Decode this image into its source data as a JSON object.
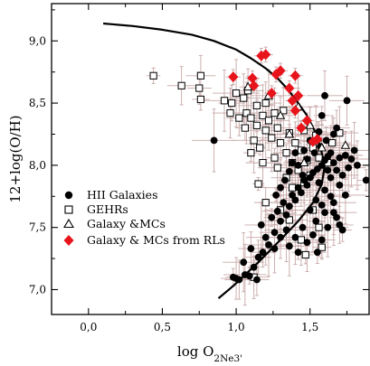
{
  "chart_data": {
    "type": "scatter",
    "xlabel": "log O2Ne3'",
    "ylabel": "12+log(O/H)",
    "xlim": [
      -0.25,
      1.9
    ],
    "ylim": [
      6.8,
      9.3
    ],
    "xticks": [
      "0,0",
      "0,5",
      "1,0",
      "1,5"
    ],
    "xtick_values": [
      0.0,
      0.5,
      1.0,
      1.5
    ],
    "yticks": [
      "7,0",
      "7,5",
      "8,0",
      "8,5",
      "9,0"
    ],
    "ytick_values": [
      7.0,
      7.5,
      8.0,
      8.5,
      9.0
    ],
    "legend_position": "left",
    "colors": {
      "axes": "#000000",
      "error_bars": "#c8a8a8",
      "highlight": "#e8141c",
      "markers": "#000000"
    },
    "series": [
      {
        "name": "HII Galaxies",
        "marker": "filled-circle",
        "points": [
          [
            1.0,
            7.09
          ],
          [
            1.02,
            7.08
          ],
          [
            1.06,
            7.12
          ],
          [
            1.09,
            7.11
          ],
          [
            1.12,
            7.18
          ],
          [
            1.05,
            7.22
          ],
          [
            1.15,
            7.26
          ],
          [
            1.18,
            7.3
          ],
          [
            1.1,
            7.33
          ],
          [
            1.22,
            7.36
          ],
          [
            1.2,
            7.42
          ],
          [
            1.26,
            7.46
          ],
          [
            1.17,
            7.52
          ],
          [
            1.3,
            7.55
          ],
          [
            1.24,
            7.58
          ],
          [
            1.34,
            7.6
          ],
          [
            1.28,
            7.63
          ],
          [
            1.36,
            7.67
          ],
          [
            1.32,
            7.7
          ],
          [
            1.4,
            7.72
          ],
          [
            1.38,
            7.76
          ],
          [
            1.44,
            7.78
          ],
          [
            1.42,
            7.82
          ],
          [
            1.48,
            7.84
          ],
          [
            1.46,
            7.88
          ],
          [
            1.5,
            7.9
          ],
          [
            1.52,
            7.94
          ],
          [
            1.55,
            7.97
          ],
          [
            1.58,
            8.0
          ],
          [
            1.6,
            8.04
          ],
          [
            1.62,
            8.07
          ],
          [
            1.64,
            8.1
          ],
          [
            1.66,
            8.02
          ],
          [
            1.68,
            7.96
          ],
          [
            1.7,
            8.06
          ],
          [
            1.72,
            7.92
          ],
          [
            1.74,
            8.08
          ],
          [
            1.76,
            7.98
          ],
          [
            1.78,
            8.05
          ],
          [
            1.8,
            8.12
          ],
          [
            1.82,
            8.0
          ],
          [
            1.88,
            7.88
          ],
          [
            1.56,
            7.86
          ],
          [
            1.6,
            7.8
          ],
          [
            1.64,
            7.75
          ],
          [
            1.66,
            7.7
          ],
          [
            1.6,
            7.62
          ],
          [
            1.68,
            7.58
          ],
          [
            1.7,
            7.52
          ],
          [
            1.72,
            7.48
          ],
          [
            1.62,
            7.5
          ],
          [
            1.54,
            7.55
          ],
          [
            1.5,
            7.64
          ],
          [
            1.45,
            7.5
          ],
          [
            1.4,
            7.42
          ],
          [
            1.36,
            7.35
          ],
          [
            1.42,
            7.3
          ],
          [
            1.48,
            7.38
          ],
          [
            1.52,
            7.44
          ],
          [
            1.58,
            7.4
          ],
          [
            1.55,
            7.3
          ],
          [
            1.34,
            7.48
          ],
          [
            1.3,
            7.42
          ],
          [
            1.26,
            7.33
          ],
          [
            1.45,
            7.92
          ],
          [
            1.42,
            8.0
          ],
          [
            1.48,
            8.05
          ],
          [
            1.53,
            8.1
          ],
          [
            1.57,
            8.15
          ],
          [
            1.61,
            8.2
          ],
          [
            1.66,
            8.25
          ],
          [
            1.5,
            8.2
          ],
          [
            1.46,
            8.12
          ],
          [
            1.4,
            8.1
          ],
          [
            1.38,
            8.02
          ],
          [
            1.36,
            7.95
          ],
          [
            1.33,
            7.88
          ],
          [
            1.3,
            7.82
          ],
          [
            1.27,
            7.76
          ],
          [
            1.56,
            8.27
          ],
          [
            1.58,
            8.4
          ],
          [
            1.6,
            8.56
          ],
          [
            1.75,
            8.52
          ],
          [
            1.68,
            8.3
          ],
          [
            1.64,
            7.9
          ],
          [
            1.7,
            7.84
          ],
          [
            1.74,
            7.76
          ],
          [
            1.54,
            7.72
          ],
          [
            1.58,
            7.68
          ],
          [
            1.62,
            7.96
          ],
          [
            1.66,
            7.62
          ],
          [
            0.85,
            8.2
          ],
          [
            1.14,
            7.08
          ],
          [
            0.98,
            7.1
          ]
        ]
      },
      {
        "name": "GEHRs",
        "marker": "open-square",
        "points": [
          [
            0.44,
            8.72
          ],
          [
            0.63,
            8.64
          ],
          [
            0.76,
            8.72
          ],
          [
            0.75,
            8.62
          ],
          [
            0.76,
            8.53
          ],
          [
            0.92,
            8.52
          ],
          [
            0.97,
            8.5
          ],
          [
            0.96,
            8.42
          ],
          [
            1.0,
            8.58
          ],
          [
            1.05,
            8.54
          ],
          [
            1.07,
            8.42
          ],
          [
            1.1,
            8.38
          ],
          [
            1.06,
            8.3
          ],
          [
            1.14,
            8.32
          ],
          [
            1.12,
            8.2
          ],
          [
            1.18,
            8.4
          ],
          [
            1.2,
            8.28
          ],
          [
            1.16,
            8.14
          ],
          [
            1.22,
            8.36
          ],
          [
            1.24,
            8.22
          ],
          [
            1.26,
            8.06
          ],
          [
            1.28,
            8.3
          ],
          [
            1.3,
            8.18
          ],
          [
            1.32,
            8.44
          ],
          [
            1.34,
            8.1
          ],
          [
            1.36,
            8.26
          ],
          [
            1.38,
            8.02
          ],
          [
            1.4,
            8.18
          ],
          [
            1.42,
            7.96
          ],
          [
            1.44,
            8.12
          ],
          [
            1.46,
            8.28
          ],
          [
            1.48,
            8.04
          ],
          [
            1.5,
            7.92
          ],
          [
            1.52,
            8.14
          ],
          [
            1.54,
            8.24
          ],
          [
            1.56,
            8.06
          ],
          [
            1.62,
            8.02
          ],
          [
            1.65,
            8.18
          ],
          [
            1.7,
            8.26
          ],
          [
            1.46,
            7.86
          ],
          [
            1.38,
            7.82
          ],
          [
            1.34,
            7.9
          ],
          [
            1.2,
            7.7
          ],
          [
            1.15,
            7.85
          ],
          [
            1.28,
            7.98
          ],
          [
            1.44,
            7.4
          ],
          [
            1.47,
            7.28
          ],
          [
            1.58,
            7.34
          ],
          [
            1.12,
            7.1
          ],
          [
            1.08,
            8.6
          ],
          [
            1.14,
            8.48
          ],
          [
            1.2,
            8.5
          ],
          [
            1.26,
            8.42
          ],
          [
            1.18,
            8.02
          ],
          [
            1.02,
            8.38
          ],
          [
            1.1,
            8.1
          ],
          [
            1.3,
            7.64
          ],
          [
            1.36,
            7.56
          ],
          [
            1.52,
            7.64
          ],
          [
            1.56,
            7.5
          ]
        ]
      },
      {
        "name": "Galaxy &MCs",
        "marker": "open-triangle",
        "points": [
          [
            1.08,
            8.63
          ],
          [
            1.22,
            8.56
          ],
          [
            1.3,
            8.4
          ],
          [
            1.36,
            8.25
          ],
          [
            1.42,
            8.47
          ],
          [
            1.5,
            8.32
          ],
          [
            1.55,
            8.22
          ],
          [
            1.58,
            8.14
          ],
          [
            1.74,
            8.16
          ],
          [
            1.46,
            8.02
          ]
        ]
      },
      {
        "name": "Galaxy & MCs from RLs",
        "marker": "filled-diamond",
        "points": [
          [
            1.17,
            8.88
          ],
          [
            1.2,
            8.89
          ],
          [
            1.27,
            8.73
          ],
          [
            1.3,
            8.76
          ],
          [
            1.4,
            8.72
          ],
          [
            0.98,
            8.71
          ],
          [
            1.11,
            8.7
          ],
          [
            1.12,
            8.64
          ],
          [
            1.24,
            8.58
          ],
          [
            1.36,
            8.62
          ],
          [
            1.38,
            8.52
          ],
          [
            1.42,
            8.56
          ],
          [
            1.4,
            8.44
          ],
          [
            1.44,
            8.3
          ],
          [
            1.48,
            8.36
          ],
          [
            1.52,
            8.19
          ],
          [
            1.55,
            8.21
          ]
        ]
      }
    ],
    "curve": {
      "x": [
        0.1,
        0.3,
        0.5,
        0.7,
        0.85,
        1.0,
        1.1,
        1.2,
        1.28,
        1.35,
        1.42,
        1.48,
        1.53,
        1.57,
        1.6,
        1.58,
        1.52,
        1.42,
        1.3,
        1.15,
        0.98,
        0.88
      ],
      "y": [
        9.14,
        9.12,
        9.09,
        9.05,
        9.0,
        8.93,
        8.86,
        8.78,
        8.7,
        8.61,
        8.5,
        8.4,
        8.28,
        8.15,
        8.0,
        7.85,
        7.7,
        7.55,
        7.4,
        7.22,
        7.03,
        6.93
      ]
    }
  },
  "legend": [
    {
      "label": "HII Galaxies",
      "marker": "filled-circle"
    },
    {
      "label": "GEHRs",
      "marker": "open-square"
    },
    {
      "label": "Galaxy &MCs",
      "marker": "open-triangle"
    },
    {
      "label": "Galaxy & MCs from RLs",
      "marker": "filled-diamond"
    }
  ]
}
